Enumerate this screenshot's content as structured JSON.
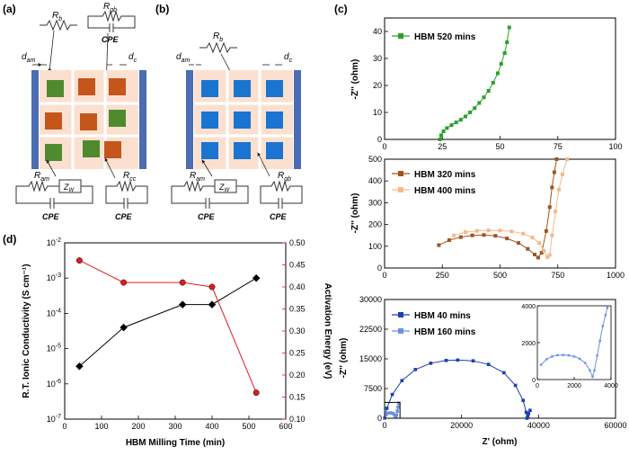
{
  "panels": {
    "a": {
      "label": "(a)",
      "Rb": "R",
      "Rb_sub": "b",
      "Rgb": "R",
      "Rgb_sub": "gb",
      "cpe_top": "CPE",
      "dam": "d",
      "dam_sub": "am",
      "dc": "d",
      "dc_sub": "c",
      "Ram": "R",
      "Ram_sub": "am",
      "Zw": "Z",
      "Zw_sub": "W",
      "Rcc": "R",
      "Rcc_sub": "cc",
      "cpe_left": "CPE",
      "cpe_right": "CPE"
    },
    "b": {
      "label": "(b)",
      "Rb": "R",
      "Rb_sub": "b",
      "dam": "d",
      "dam_sub": "am",
      "dc": "d",
      "dc_sub": "c",
      "Ram": "R",
      "Ram_sub": "am",
      "Zw": "Z",
      "Zw_sub": "W",
      "Rgb": "R",
      "Rgb_sub": "gb",
      "cpe_left": "CPE",
      "cpe_right": "CPE"
    },
    "c": {
      "label": "(c)"
    },
    "d": {
      "label": "(d)"
    }
  },
  "colors": {
    "electrode": "#4a6db3",
    "cell_bg": "#fbe0d0",
    "green_grain": "#4f8a2f",
    "orange_grain": "#c4561b",
    "blue_grain": "#1a74d0",
    "series_520": "#2ca02c",
    "series_320": "#a0541f",
    "series_400": "#f5b98a",
    "series_40": "#1a3fb0",
    "series_160": "#6b8fe6",
    "conductivity": "#000000",
    "activation": "#e31a1c"
  },
  "chart_data": [
    {
      "id": "c1",
      "type": "line",
      "xlabel": "",
      "ylabel": "-Z'' (ohm)",
      "xlim": [
        0,
        100
      ],
      "ylim": [
        0,
        45
      ],
      "xticks": [
        "0",
        "25",
        "50",
        "75",
        "100"
      ],
      "yticks": [
        "0",
        "10",
        "20",
        "30",
        "40"
      ],
      "legend_position": "top-left",
      "series": [
        {
          "name": "HBM 520 mins",
          "x": [
            24,
            24.5,
            25.5,
            27,
            29,
            31,
            33,
            35,
            37,
            39,
            41,
            43,
            45,
            47,
            49,
            50.5,
            52,
            53,
            54
          ],
          "y": [
            0,
            1.5,
            3,
            4.2,
            5.3,
            6.3,
            7.3,
            8.5,
            10,
            11.6,
            13.5,
            15.6,
            18,
            21,
            24.5,
            28,
            32,
            36,
            41.5
          ]
        }
      ]
    },
    {
      "id": "c2",
      "type": "line",
      "xlabel": "",
      "ylabel": "-Z'' (ohm)",
      "xlim": [
        0,
        1000
      ],
      "ylim": [
        0,
        500
      ],
      "xticks": [
        "0",
        "250",
        "500",
        "750",
        "1000"
      ],
      "yticks": [
        "0",
        "100",
        "200",
        "300",
        "400",
        "500"
      ],
      "legend_position": "top-left",
      "series": [
        {
          "name": "HBM 320 mins",
          "x": [
            235,
            280,
            330,
            380,
            430,
            480,
            530,
            580,
            620,
            650,
            665,
            680,
            700,
            715,
            725,
            735,
            745
          ],
          "y": [
            105,
            128,
            142,
            150,
            152,
            148,
            136,
            115,
            88,
            62,
            48,
            70,
            170,
            280,
            370,
            440,
            500
          ]
        },
        {
          "name": "HBM 400 mins",
          "x": [
            300,
            350,
            400,
            450,
            500,
            550,
            600,
            640,
            670,
            690,
            705,
            715,
            725,
            740,
            755,
            770,
            790
          ],
          "y": [
            150,
            165,
            171,
            173,
            172,
            168,
            158,
            140,
            115,
            80,
            50,
            60,
            150,
            260,
            360,
            430,
            500
          ]
        }
      ]
    },
    {
      "id": "c3",
      "type": "line",
      "xlabel": "Z' (ohm)",
      "ylabel": "-Z'' (ohm)",
      "xlim": [
        0,
        60000
      ],
      "ylim": [
        0,
        30000
      ],
      "xticks": [
        "0",
        "20000",
        "40000",
        "60000"
      ],
      "yticks": [
        "0",
        "7500",
        "15000",
        "22500",
        "30000"
      ],
      "legend_position": "top-left",
      "series": [
        {
          "name": "HBM 40 mins",
          "x": [
            0,
            600,
            2000,
            4500,
            8000,
            12000,
            16000,
            19000,
            23000,
            27000,
            31000,
            34000,
            36000,
            36800,
            37000,
            37200,
            37400,
            37800
          ],
          "y": [
            0,
            2500,
            6000,
            9500,
            12300,
            13900,
            14600,
            14700,
            14500,
            13600,
            11500,
            8300,
            4500,
            1500,
            0,
            400,
            1200,
            2000
          ]
        },
        {
          "name": "HBM 160 mins",
          "x": [
            0,
            400,
            1000,
            1600,
            2200,
            2600,
            2900,
            3100,
            3300,
            3500,
            3700
          ],
          "y": [
            0,
            900,
            1300,
            1350,
            1200,
            800,
            300,
            800,
            1800,
            2800,
            3800
          ]
        }
      ],
      "inset": {
        "xlim": [
          0,
          4000
        ],
        "ylim": [
          0,
          4000
        ],
        "xticks": [
          "0",
          "2000",
          "4000"
        ],
        "yticks": [
          "0",
          "2000",
          "4000"
        ],
        "series": [
          {
            "name": "HBM 160 mins",
            "x": [
              200,
              500,
              800,
              1100,
              1400,
              1700,
              2000,
              2300,
              2600,
              2850,
              3000,
              3100,
              3250,
              3400,
              3550,
              3700,
              3800
            ],
            "y": [
              800,
              1100,
              1250,
              1320,
              1330,
              1310,
              1250,
              1130,
              900,
              500,
              150,
              500,
              1300,
              2100,
              2900,
              3500,
              3900
            ]
          }
        ]
      }
    },
    {
      "id": "d",
      "type": "line",
      "xlabel": "HBM Milling Time (min)",
      "ylabel": "R.T. Ionic Conductivity (S cm⁻¹)",
      "ylabel_right": "Activation Energy (eV)",
      "xlim": [
        0,
        600
      ],
      "ylim": [
        -7,
        -2
      ],
      "ylim_right": [
        0.1,
        0.5
      ],
      "xticks": [
        "0",
        "100",
        "200",
        "300",
        "400",
        "500",
        "600"
      ],
      "yticks_base": "10",
      "yticks_exp": [
        "-7",
        "-6",
        "-5",
        "-4",
        "-3",
        "-2"
      ],
      "yticks_right": [
        "0.10",
        "0.15",
        "0.20",
        "0.25",
        "0.30",
        "0.35",
        "0.40",
        "0.45",
        "0.50"
      ],
      "series": [
        {
          "name": "R.T. Ionic Conductivity",
          "axis": "left",
          "x": [
            40,
            160,
            320,
            400,
            520
          ],
          "log10_y": [
            -5.5,
            -4.4,
            -3.75,
            -3.75,
            -3.0
          ]
        },
        {
          "name": "Activation Energy",
          "axis": "right",
          "x": [
            40,
            160,
            320,
            400,
            520
          ],
          "y": [
            0.46,
            0.41,
            0.41,
            0.4,
            0.16
          ]
        }
      ]
    }
  ]
}
